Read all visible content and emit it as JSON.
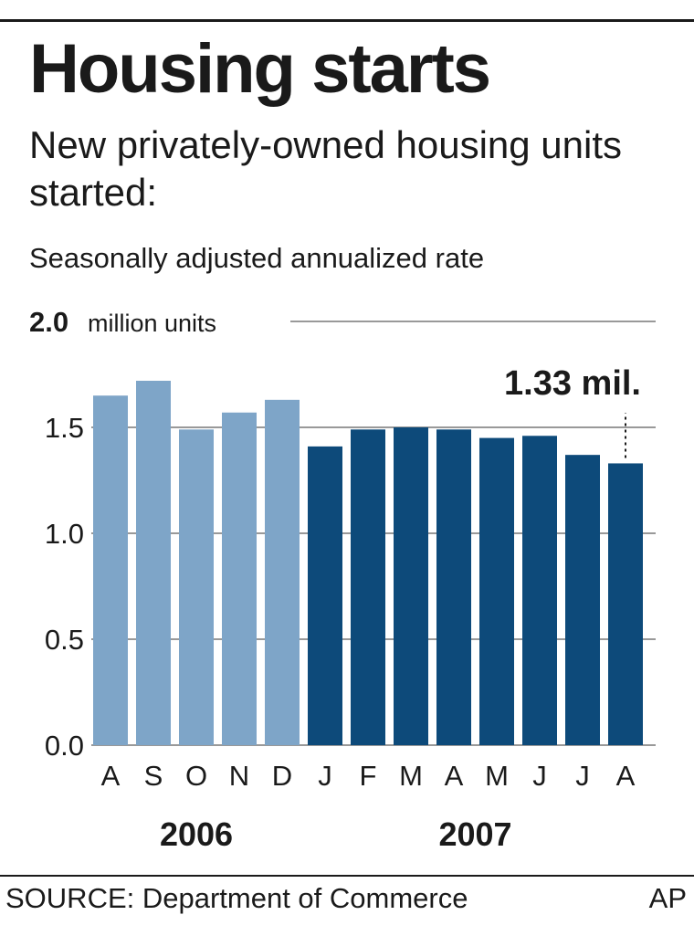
{
  "header": {
    "title": "Housing starts",
    "subtitle": "New privately-owned housing units started:",
    "note": "Seasonally adjusted annualized rate"
  },
  "footer": {
    "source": "SOURCE: Department of Commerce",
    "credit": "AP"
  },
  "colors": {
    "bar_2006": "#7ea5c8",
    "bar_2007": "#0d4a7a",
    "grid": "#999999",
    "text": "#1a1a1a"
  },
  "chart_data": {
    "type": "bar",
    "title": "Housing starts",
    "ylabel": "million units",
    "ylim": [
      0,
      2.0
    ],
    "yticks": [
      "0.0",
      "0.5",
      "1.0",
      "1.5",
      "2.0"
    ],
    "top_tick_unit": "million units",
    "grid": true,
    "categories": [
      "A",
      "S",
      "O",
      "N",
      "D",
      "J",
      "F",
      "M",
      "A",
      "M",
      "J",
      "J",
      "A"
    ],
    "years": [
      {
        "label": "2006",
        "start": 0,
        "end": 4
      },
      {
        "label": "2007",
        "start": 5,
        "end": 12
      }
    ],
    "values": [
      1.65,
      1.72,
      1.49,
      1.57,
      1.63,
      1.41,
      1.49,
      1.5,
      1.49,
      1.45,
      1.46,
      1.37,
      1.33
    ],
    "annotation": {
      "text": "1.33 mil.",
      "index": 12
    }
  }
}
